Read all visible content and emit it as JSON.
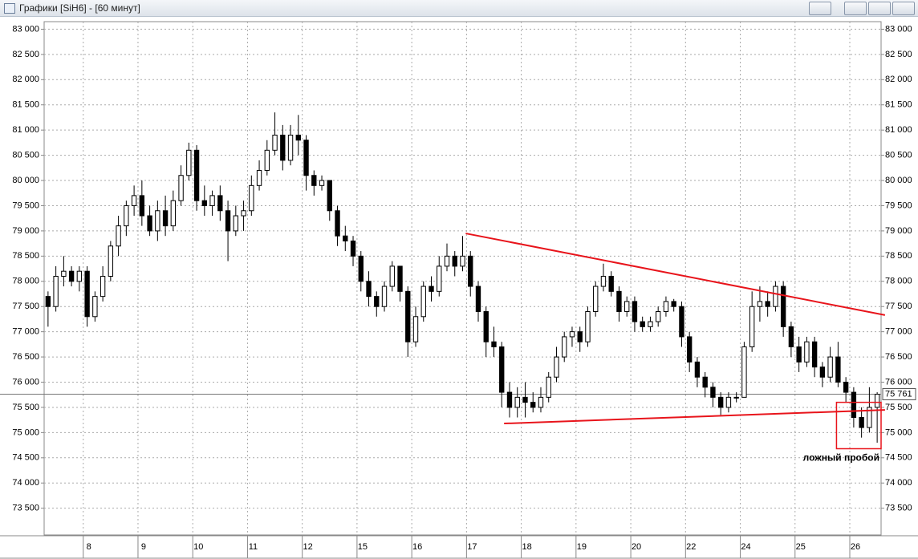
{
  "window_title": "Графики [SiH6] - [60 минут]",
  "chart_data": {
    "type": "candlestick",
    "categories": [
      null,
      null,
      null,
      null,
      null,
      "8",
      null,
      null,
      null,
      null,
      null,
      null,
      "9",
      null,
      null,
      null,
      null,
      null,
      null,
      "10",
      null,
      null,
      null,
      null,
      null,
      null,
      "11",
      null,
      null,
      null,
      null,
      null,
      null,
      "12",
      null,
      null,
      null,
      null,
      null,
      null,
      "15",
      null,
      null,
      null,
      null,
      null,
      null,
      "16",
      null,
      null,
      null,
      null,
      null,
      null,
      "17",
      null,
      null,
      null,
      null,
      null,
      null,
      "18",
      null,
      null,
      null,
      null,
      null,
      null,
      "19",
      null,
      null,
      null,
      null,
      null,
      null,
      "20",
      null,
      null,
      null,
      null,
      null,
      null,
      "22",
      null,
      null,
      null,
      null,
      null,
      null,
      "24",
      null,
      null,
      null,
      null,
      null,
      null,
      "25",
      null,
      null,
      null,
      null,
      null,
      null,
      "26",
      null,
      null,
      null
    ],
    "open": [
      77700,
      77500,
      78100,
      78200,
      78000,
      78200,
      77300,
      77700,
      78100,
      78700,
      79100,
      79500,
      79700,
      79300,
      79000,
      79400,
      79100,
      79600,
      80100,
      80600,
      79600,
      79500,
      79700,
      79400,
      79000,
      79300,
      79400,
      79900,
      80200,
      80600,
      80900,
      80400,
      80900,
      80800,
      80100,
      79900,
      80000,
      79400,
      78900,
      78800,
      78500,
      78000,
      77700,
      77500,
      77900,
      78300,
      77800,
      76800,
      77300,
      77900,
      77800,
      78300,
      78500,
      78300,
      78500,
      77900,
      77400,
      76800,
      76700,
      75800,
      75500,
      75700,
      75600,
      75500,
      75700,
      76100,
      76500,
      76900,
      77000,
      76800,
      77400,
      77900,
      78100,
      77800,
      77400,
      77600,
      77200,
      77100,
      77200,
      77400,
      77600,
      77500,
      76900,
      76400,
      76100,
      75900,
      75700,
      75500,
      75700,
      75700,
      76700,
      77500,
      77600,
      77500,
      77900,
      77100,
      76700,
      76400,
      76800,
      76300,
      76100,
      76500,
      76000,
      75800,
      75300,
      75100,
      75500
    ],
    "high": [
      77800,
      78300,
      78500,
      78300,
      78300,
      78300,
      77800,
      78300,
      78800,
      79300,
      79600,
      79900,
      80000,
      79500,
      79600,
      79700,
      79800,
      80300,
      80750,
      80700,
      79900,
      79800,
      79900,
      79600,
      79500,
      79600,
      80100,
      80400,
      80800,
      81350,
      81100,
      81100,
      81300,
      80900,
      80200,
      80100,
      80000,
      79500,
      79100,
      78900,
      78600,
      78200,
      77800,
      78000,
      78400,
      78300,
      77900,
      77500,
      78000,
      78100,
      78500,
      78750,
      78600,
      78900,
      78600,
      78000,
      77500,
      77100,
      76800,
      76000,
      75900,
      76000,
      75800,
      75900,
      76200,
      76700,
      77000,
      77100,
      77100,
      77500,
      78000,
      78350,
      78200,
      77900,
      77700,
      77700,
      77300,
      77300,
      77500,
      77700,
      77650,
      77600,
      77000,
      76500,
      76200,
      76000,
      75800,
      75800,
      75800,
      76800,
      77800,
      77900,
      77800,
      78000,
      78000,
      77200,
      76900,
      76900,
      76900,
      76400,
      76700,
      76800,
      76100,
      75900,
      75500,
      75900,
      75800
    ],
    "low": [
      77100,
      77400,
      77900,
      77900,
      77800,
      77100,
      77200,
      77600,
      78000,
      78500,
      78900,
      79300,
      79100,
      78900,
      78800,
      78900,
      79000,
      79500,
      80000,
      79400,
      79300,
      79300,
      79200,
      78400,
      78900,
      79000,
      79300,
      79800,
      80100,
      80500,
      80200,
      80300,
      80500,
      79800,
      79700,
      79800,
      79200,
      78700,
      78600,
      78300,
      77800,
      77500,
      77300,
      77400,
      77800,
      77600,
      76500,
      76700,
      77200,
      77600,
      77700,
      78200,
      78100,
      78200,
      77700,
      77200,
      76500,
      76500,
      75500,
      75300,
      75300,
      75300,
      75400,
      75400,
      75600,
      76000,
      76400,
      76700,
      76600,
      76700,
      77300,
      77800,
      77700,
      77200,
      77300,
      77000,
      77000,
      77000,
      77100,
      77300,
      77400,
      76700,
      76200,
      75900,
      75700,
      75500,
      75350,
      75400,
      75600,
      75700,
      76600,
      77200,
      77300,
      77400,
      76900,
      76500,
      76200,
      76300,
      76100,
      75900,
      76000,
      75900,
      75600,
      75100,
      74900,
      75000,
      74800
    ],
    "close": [
      77500,
      78100,
      78200,
      78000,
      78200,
      77300,
      77700,
      78100,
      78700,
      79100,
      79500,
      79700,
      79300,
      79000,
      79400,
      79100,
      79600,
      80100,
      80600,
      79600,
      79500,
      79700,
      79400,
      79000,
      79300,
      79400,
      79900,
      80200,
      80600,
      80900,
      80400,
      80900,
      80800,
      80100,
      79900,
      80000,
      79400,
      78900,
      78800,
      78500,
      78000,
      77700,
      77500,
      77900,
      78300,
      77800,
      76800,
      77300,
      77900,
      77800,
      78300,
      78500,
      78300,
      78500,
      77900,
      77400,
      76800,
      76700,
      75800,
      75500,
      75700,
      75600,
      75500,
      75700,
      76100,
      76500,
      76900,
      77000,
      76800,
      77400,
      77900,
      78100,
      77800,
      77400,
      77600,
      77200,
      77100,
      77200,
      77400,
      77600,
      77500,
      76900,
      76400,
      76100,
      75900,
      75700,
      75500,
      75700,
      75700,
      76700,
      77500,
      77600,
      77500,
      77900,
      77100,
      76700,
      76400,
      76800,
      76300,
      76100,
      76500,
      76000,
      75800,
      75300,
      75100,
      75500,
      75761
    ],
    "ylim": [
      72970,
      83150
    ],
    "yticks": [
      {
        "value": 73500,
        "label": "73 500"
      },
      {
        "value": 74000,
        "label": "74 000"
      },
      {
        "value": 74500,
        "label": "74 500"
      },
      {
        "value": 75000,
        "label": "75 000"
      },
      {
        "value": 75500,
        "label": "75 500"
      },
      {
        "value": 76000,
        "label": "76 000"
      },
      {
        "value": 76500,
        "label": "76 500"
      },
      {
        "value": 77000,
        "label": "77 000"
      },
      {
        "value": 77500,
        "label": "77 500"
      },
      {
        "value": 78000,
        "label": "78 000"
      },
      {
        "value": 78500,
        "label": "78 500"
      },
      {
        "value": 79000,
        "label": "79 000"
      },
      {
        "value": 79500,
        "label": "79 500"
      },
      {
        "value": 80000,
        "label": "80 000"
      },
      {
        "value": 80500,
        "label": "80 500"
      },
      {
        "value": 81000,
        "label": "81 000"
      },
      {
        "value": 81500,
        "label": "81 500"
      },
      {
        "value": 82000,
        "label": "82 000"
      },
      {
        "value": 82500,
        "label": "82 500"
      },
      {
        "value": 83000,
        "label": "83 000"
      }
    ],
    "last_price": {
      "value": 75761,
      "label": "75 761"
    },
    "grid": true,
    "trendlines": [
      {
        "color": "#e8141b",
        "x": [
          53.4,
          107
        ],
        "y": [
          78950,
          77330
        ]
      },
      {
        "color": "#e8141b",
        "x": [
          58.3,
          107
        ],
        "y": [
          75180,
          75450
        ]
      }
    ],
    "box": {
      "color": "#e8141b",
      "x": [
        100.8,
        106.5
      ],
      "y": [
        75600,
        74680
      ]
    },
    "annotation": "ложный пробой"
  }
}
